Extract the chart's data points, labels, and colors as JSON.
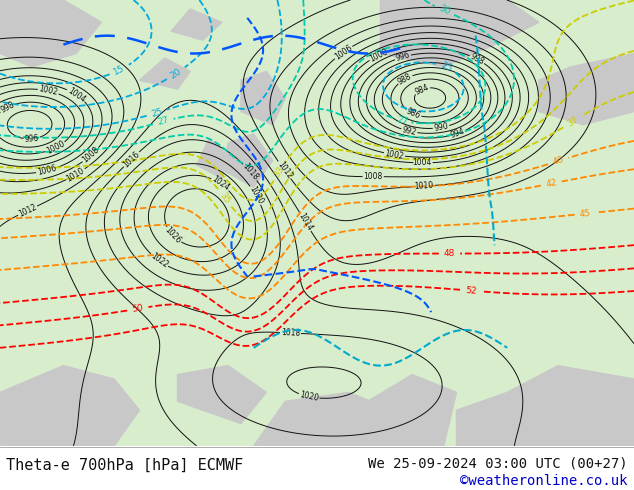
{
  "title_left": "Theta-e 700hPa [hPa] ECMWF",
  "title_right": "We 25-09-2024 03:00 UTC (00+27)",
  "title_right2": "©weatheronline.co.uk",
  "bg_color": "#ffffff",
  "map_sea_color": "#d8edcc",
  "gray_land_color": "#c8c8c8",
  "title_fontsize": 11,
  "footer_fontsize": 10,
  "credit_color": "#0000cc",
  "isobar_color": "#111111",
  "isobar_lw": 0.7,
  "theta_cyan_color": "#00aadd",
  "theta_teal_color": "#00ccaa",
  "theta_yellow_color": "#cccc00",
  "theta_orange_color": "#ff8800",
  "theta_red_color": "#ff0000",
  "front_blue_color": "#0055ff",
  "front_cyan_color": "#00aacc"
}
